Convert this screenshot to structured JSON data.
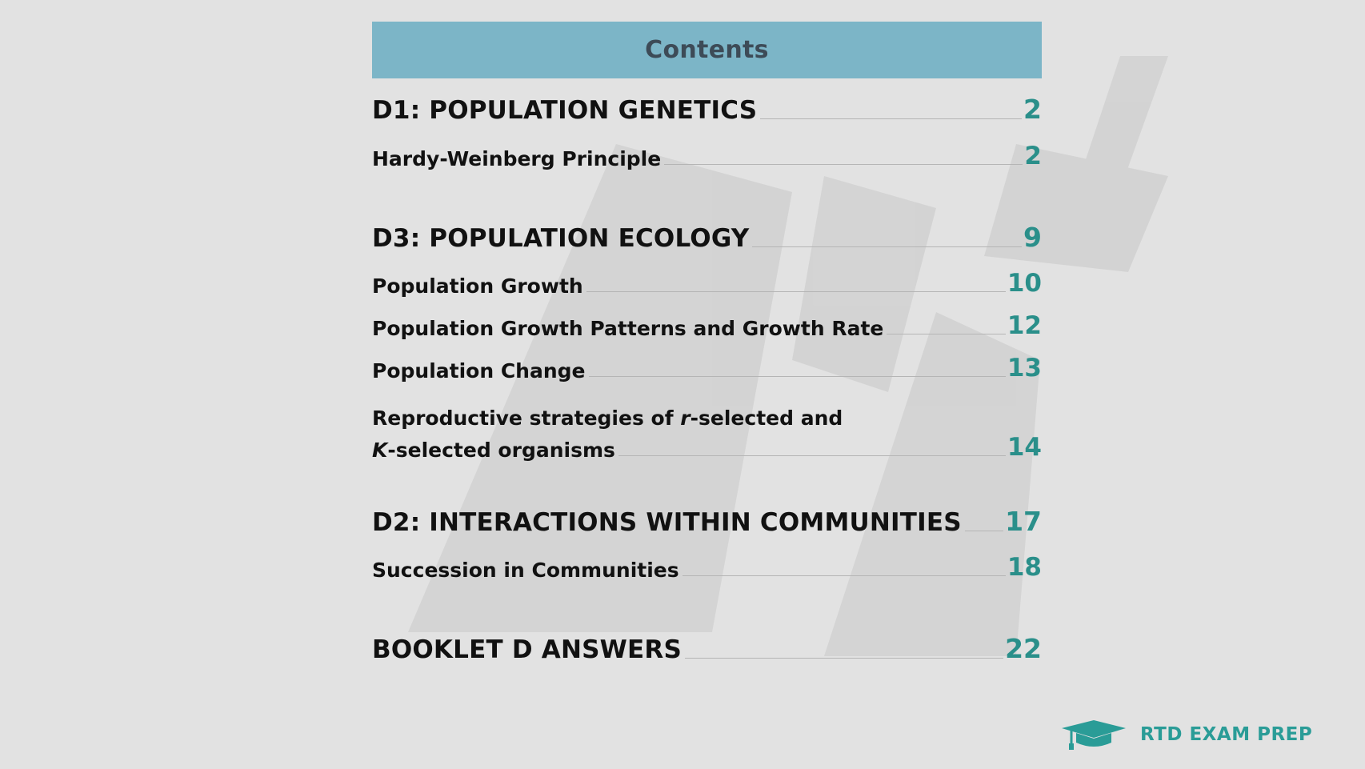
{
  "header": {
    "title": "Contents"
  },
  "toc": {
    "d1": {
      "label": "D1: POPULATION GENETICS",
      "page": "2"
    },
    "hardy": {
      "label": "Hardy-Weinberg Principle",
      "page": "2"
    },
    "d3": {
      "label": "D3: POPULATION ECOLOGY",
      "page": "9"
    },
    "growth": {
      "label": "Population Growth",
      "page": "10"
    },
    "patterns": {
      "label": "Population Growth Patterns and Growth Rate",
      "page": "12"
    },
    "change": {
      "label": "Population Change",
      "page": "13"
    },
    "repro": {
      "line1_pre": "Reproductive strategies of ",
      "line1_italic": "r",
      "line1_post": "-selected and",
      "line2_italic": "K",
      "line2_post": "-selected organisms",
      "page": "14"
    },
    "d2": {
      "label": "D2: INTERACTIONS WITHIN COMMUNITIES",
      "page": "17"
    },
    "succession": {
      "label": "Succession in Communities",
      "page": "18"
    },
    "answers": {
      "label": "BOOKLET D ANSWERS",
      "page": "22"
    }
  },
  "logo": {
    "text": "RTD EXAM PREP",
    "icon": "graduation-cap-icon"
  },
  "colors": {
    "background": "#e2e2e2",
    "header_bar": "#7cb5c7",
    "header_text": "#3d4b57",
    "page_number": "#2a8f8a",
    "logo": "#2a9c97"
  }
}
